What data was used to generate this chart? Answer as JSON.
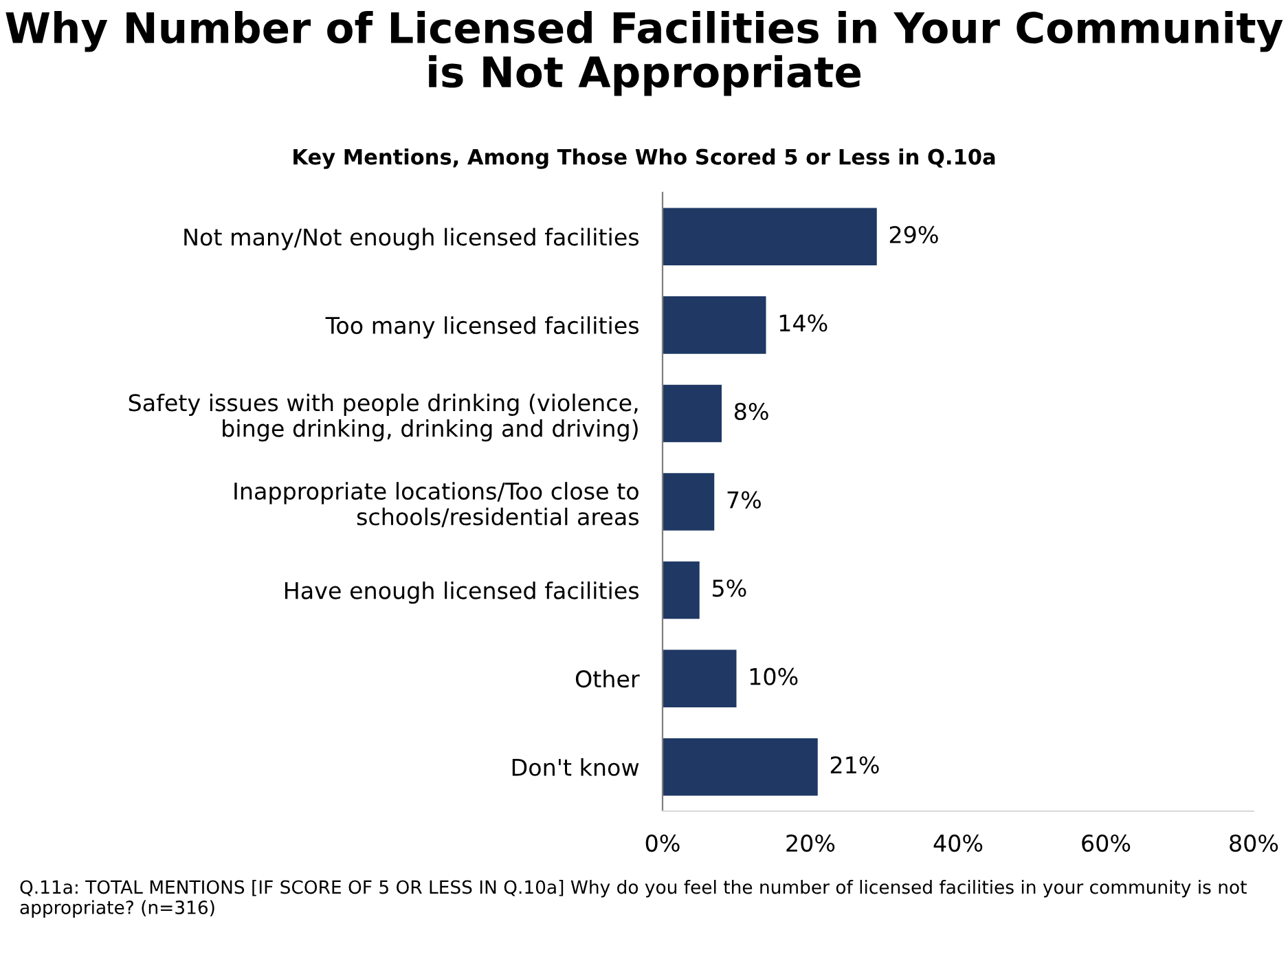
{
  "chart_data": {
    "type": "bar",
    "orientation": "horizontal",
    "title": "Why Number of Licensed Facilities in Your Community\nis Not Appropriate",
    "subtitle": "Key Mentions, Among Those Who Scored 5 or Less in Q.10a",
    "categories": [
      "Not many/Not enough licensed facilities",
      "Too many licensed facilities",
      "Safety issues with people drinking (violence,\nbinge drinking, drinking and driving)",
      "Inappropriate locations/Too close to\nschools/residential areas",
      "Have enough licensed facilities",
      "Other",
      "Don't know"
    ],
    "values": [
      29,
      14,
      8,
      7,
      5,
      10,
      21
    ],
    "value_labels": [
      "29%",
      "14%",
      "8%",
      "7%",
      "5%",
      "10%",
      "21%"
    ],
    "color": "#1f3864",
    "xlim": [
      0,
      80
    ],
    "xticks": [
      {
        "value": 0,
        "label": "0%"
      },
      {
        "value": 20,
        "label": "20%"
      },
      {
        "value": 40,
        "label": "40%"
      },
      {
        "value": 60,
        "label": "60%"
      },
      {
        "value": 80,
        "label": "80%"
      }
    ],
    "grid": false,
    "annotations": [
      "Q.11a: TOTAL MENTIONS [IF SCORE OF 5 OR LESS IN Q.10a] Why do you feel the number of licensed facilities in your community is not appropriate? (n=316)"
    ]
  }
}
